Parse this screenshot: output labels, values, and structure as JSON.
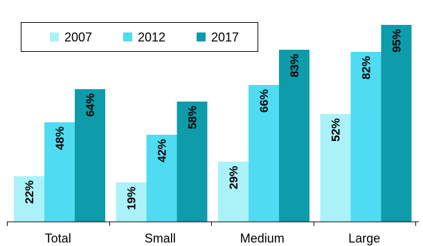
{
  "chart_data": {
    "type": "bar",
    "title": "",
    "xlabel": "",
    "ylabel": "",
    "categories": [
      "Total",
      "Small",
      "Medium",
      "Large"
    ],
    "series": [
      {
        "name": "2007",
        "values": [
          22,
          19,
          29,
          52
        ],
        "labels": [
          "22%",
          "19%",
          "29%",
          "52%"
        ],
        "color": "#aaf2f8"
      },
      {
        "name": "2012",
        "values": [
          48,
          42,
          66,
          82
        ],
        "labels": [
          "48%",
          "42%",
          "66%",
          "82%"
        ],
        "color": "#4fdcf2"
      },
      {
        "name": "2017",
        "values": [
          64,
          58,
          83,
          95
        ],
        "labels": [
          "64%",
          "58%",
          "83%",
          "95%"
        ],
        "color": "#0e9caa"
      }
    ],
    "ylim": [
      0,
      100
    ],
    "grid": false,
    "legend_position": "top-left",
    "axis_color": "#000000"
  }
}
